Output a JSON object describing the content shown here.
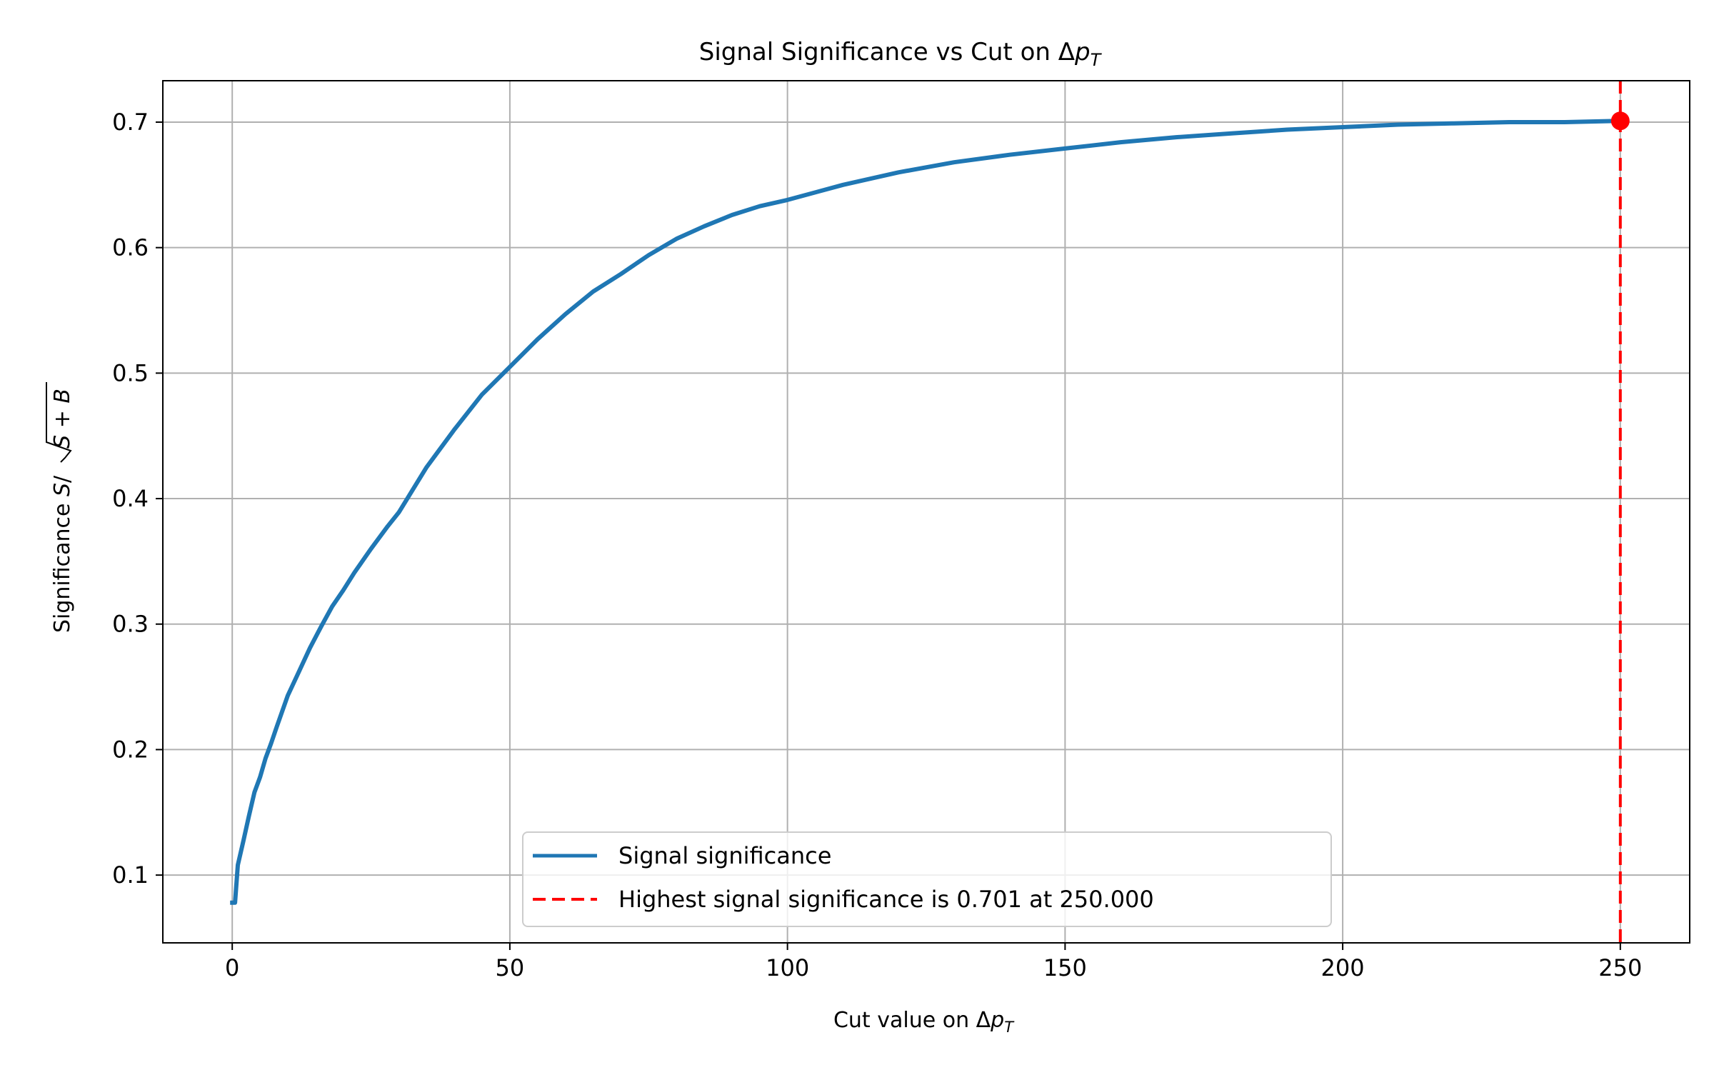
{
  "chart_data": {
    "type": "line",
    "title": {
      "main": "Signal Significance vs Cut on Δ",
      "var": "p",
      "sub": "T"
    },
    "xlabel": {
      "main": "Cut value on Δ",
      "var": "p",
      "sub": "T"
    },
    "ylabel": {
      "pre": "Significance ",
      "s": "S",
      "slash": "/",
      "radicand": "S + B"
    },
    "xlim": [
      -12.5,
      262.5
    ],
    "ylim": [
      0.046,
      0.733
    ],
    "xticks": [
      0,
      50,
      100,
      150,
      200,
      250
    ],
    "xtick_labels": [
      "0",
      "50",
      "100",
      "150",
      "200",
      "250"
    ],
    "yticks": [
      0.1,
      0.2,
      0.3,
      0.4,
      0.5,
      0.6,
      0.7
    ],
    "ytick_labels": [
      "0.1",
      "0.2",
      "0.3",
      "0.4",
      "0.5",
      "0.6",
      "0.7"
    ],
    "grid": true,
    "legend_position": "lower center",
    "series": [
      {
        "name": "Signal significance",
        "color": "#1f77b4",
        "style": "solid",
        "x": [
          0,
          0.5,
          1,
          2,
          3,
          4,
          5,
          6,
          7,
          8,
          10,
          12,
          14,
          16,
          18,
          20,
          22,
          25,
          28,
          30,
          35,
          40,
          45,
          50,
          55,
          60,
          65,
          70,
          75,
          80,
          85,
          90,
          95,
          100,
          110,
          120,
          130,
          140,
          150,
          160,
          170,
          180,
          190,
          200,
          210,
          220,
          230,
          240,
          250
        ],
        "y": [
          0.078,
          0.078,
          0.108,
          0.127,
          0.147,
          0.166,
          0.178,
          0.193,
          0.205,
          0.218,
          0.243,
          0.262,
          0.281,
          0.298,
          0.314,
          0.327,
          0.341,
          0.36,
          0.378,
          0.389,
          0.425,
          0.455,
          0.483,
          0.505,
          0.527,
          0.547,
          0.565,
          0.579,
          0.594,
          0.607,
          0.617,
          0.626,
          0.633,
          0.638,
          0.65,
          0.66,
          0.668,
          0.674,
          0.679,
          0.684,
          0.688,
          0.691,
          0.694,
          0.696,
          0.698,
          0.699,
          0.7,
          0.7,
          0.701
        ]
      }
    ],
    "max_marker": {
      "name": "Highest signal significance is 0.701 at 250.000",
      "x": 250,
      "y": 0.701,
      "color": "#ff0000",
      "style": "dashed"
    }
  }
}
